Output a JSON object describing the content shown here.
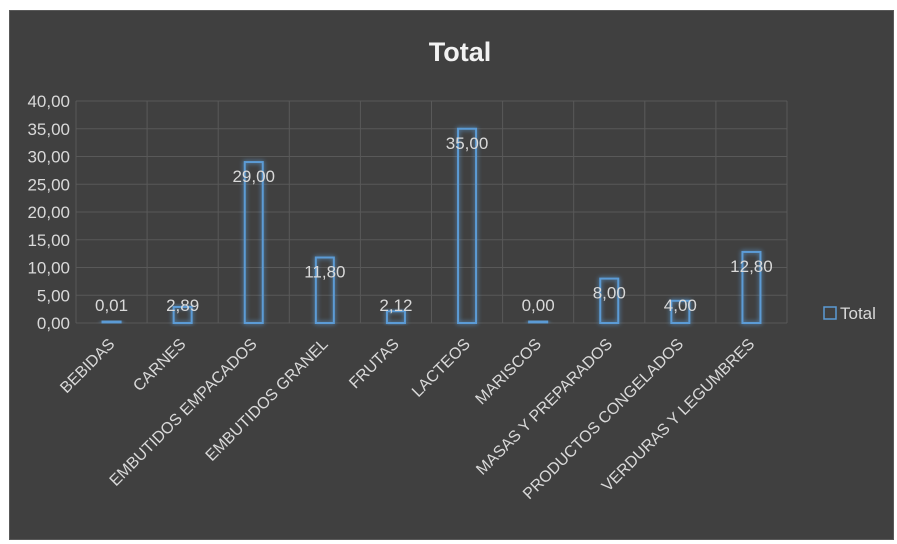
{
  "chart_data": {
    "type": "bar",
    "title": "Total",
    "categories": [
      "BEBIDAS",
      "CARNES",
      "EMBUTIDOS EMPACADOS",
      "EMBUTIDOS GRANEL",
      "FRUTAS",
      "LACTEOS",
      "MARISCOS",
      "MASAS Y PREPARADOS",
      "PRODUCTOS CONGELADOS",
      "VERDURAS Y LEGUMBRES"
    ],
    "series": [
      {
        "name": "Total",
        "values": [
          0.01,
          2.89,
          29.0,
          11.8,
          2.12,
          35.0,
          0.0,
          8.0,
          4.0,
          12.8
        ]
      }
    ],
    "data_labels": [
      "0,01",
      "2,89",
      "29,00",
      "11,80",
      "2,12",
      "35,00",
      "0,00",
      "8,00",
      "4,00",
      "12,80"
    ],
    "ylim": [
      0,
      40
    ],
    "yticks": [
      "0,00",
      "5,00",
      "10,00",
      "15,00",
      "20,00",
      "25,00",
      "30,00",
      "35,00",
      "40,00"
    ],
    "grid": true,
    "legend_position": "right",
    "colors": {
      "background": "#404040",
      "bar_stroke": "#5b9bd5",
      "grid": "#595959",
      "text": "#d9d9d9"
    }
  }
}
